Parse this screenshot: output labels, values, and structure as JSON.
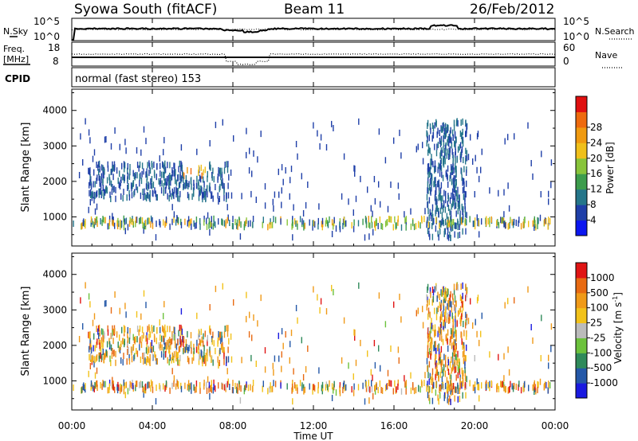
{
  "header": {
    "station": "Syowa South (fitACF)",
    "beam": "Beam 11",
    "date": "26/Feb/2012"
  },
  "noise_panel": {
    "left_label": "N.Sky",
    "right_label": "N.Search",
    "left_ticks": [
      "10^5",
      "10^0"
    ],
    "right_ticks": [
      "10^5",
      "10^0"
    ]
  },
  "freq_panel": {
    "left_label": "Freq.",
    "left_unit": "[MHz]",
    "right_label": "Nave",
    "left_ticks": [
      "18",
      "8"
    ],
    "right_ticks": [
      "60",
      "0"
    ]
  },
  "cpid": {
    "label": "CPID",
    "text": "normal (fast stereo) 153"
  },
  "chart_data": [
    {
      "type": "heatmap",
      "name": "power",
      "ylabel": "Slant Range [km]",
      "ylim": [
        180,
        4600
      ],
      "yticks": [
        "1000",
        "2000",
        "3000",
        "4000"
      ],
      "colorbar": {
        "label": "Power [dB]",
        "ticks": [
          "4",
          "8",
          "12",
          "16",
          "20",
          "24",
          "28"
        ],
        "colors": [
          "#0b16f0",
          "#1f3fa8",
          "#25768a",
          "#3c9c4c",
          "#88c43a",
          "#f0c01a",
          "#f09a10",
          "#ee6a0e",
          "#e01010"
        ]
      }
    },
    {
      "type": "heatmap",
      "name": "velocity",
      "ylabel": "Slant Range [km]",
      "ylim": [
        180,
        4600
      ],
      "yticks": [
        "1000",
        "2000",
        "3000",
        "4000"
      ],
      "colorbar": {
        "label": "Velocity [m s-1]",
        "ticks": [
          "1000",
          "500",
          "100",
          "25",
          "-25",
          "-100",
          "-500",
          "-1000"
        ],
        "colors": [
          "#1a1ae0",
          "#2458a8",
          "#2f8a5a",
          "#6cc23c",
          "#bbbbbb",
          "#f2c21a",
          "#f09a18",
          "#e86a12",
          "#e01414"
        ]
      }
    }
  ],
  "xaxis": {
    "label": "Time UT",
    "ticks": [
      "00:00",
      "04:00",
      "08:00",
      "12:00",
      "16:00",
      "20:00",
      "00:00"
    ]
  }
}
